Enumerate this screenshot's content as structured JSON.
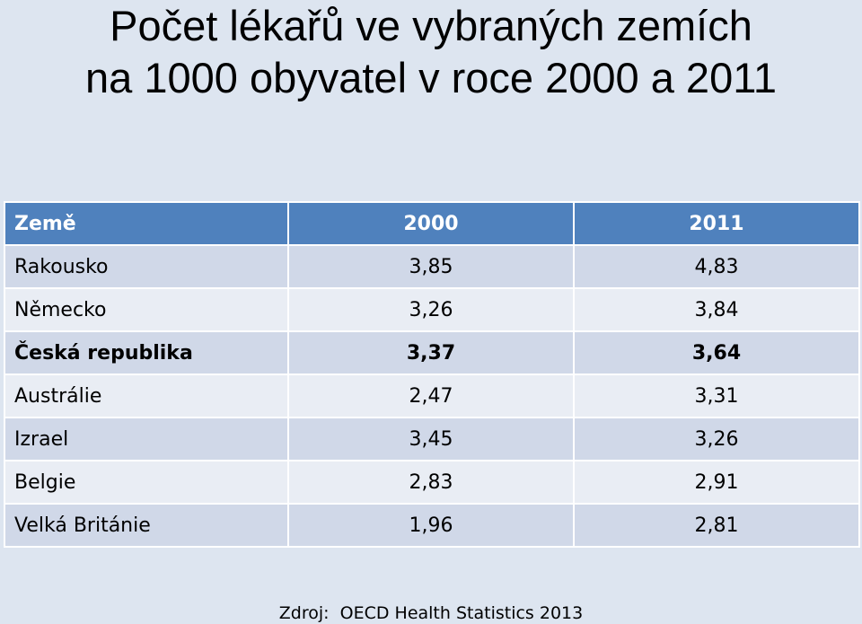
{
  "title": {
    "line1": "Počet lékařů ve vybraných zemích",
    "line2": "na 1000 obyvatel v roce 2000 a 2011"
  },
  "table": {
    "headers": [
      "Země",
      "2000",
      "2011"
    ],
    "rows": [
      {
        "country": "Rakousko",
        "v2000": "3,85",
        "v2011": "4,83",
        "bold": false
      },
      {
        "country": "Německo",
        "v2000": "3,26",
        "v2011": "3,84",
        "bold": false
      },
      {
        "country": "Česká republika",
        "v2000": "3,37",
        "v2011": "3,64",
        "bold": true
      },
      {
        "country": "Austrálie",
        "v2000": "2,47",
        "v2011": "3,31",
        "bold": false
      },
      {
        "country": "Izrael",
        "v2000": "3,45",
        "v2011": "3,26",
        "bold": false
      },
      {
        "country": "Belgie",
        "v2000": "2,83",
        "v2011": "2,91",
        "bold": false
      },
      {
        "country": "Velká Británie",
        "v2000": "1,96",
        "v2011": "2,81",
        "bold": false
      }
    ]
  },
  "source": "Zdroj:  OECD Health Statistics 2013",
  "colors": {
    "header_bg": "#4f81bd",
    "row_odd": "#d0d8e8",
    "row_even": "#e9edf4",
    "background": "#dde5f0"
  }
}
